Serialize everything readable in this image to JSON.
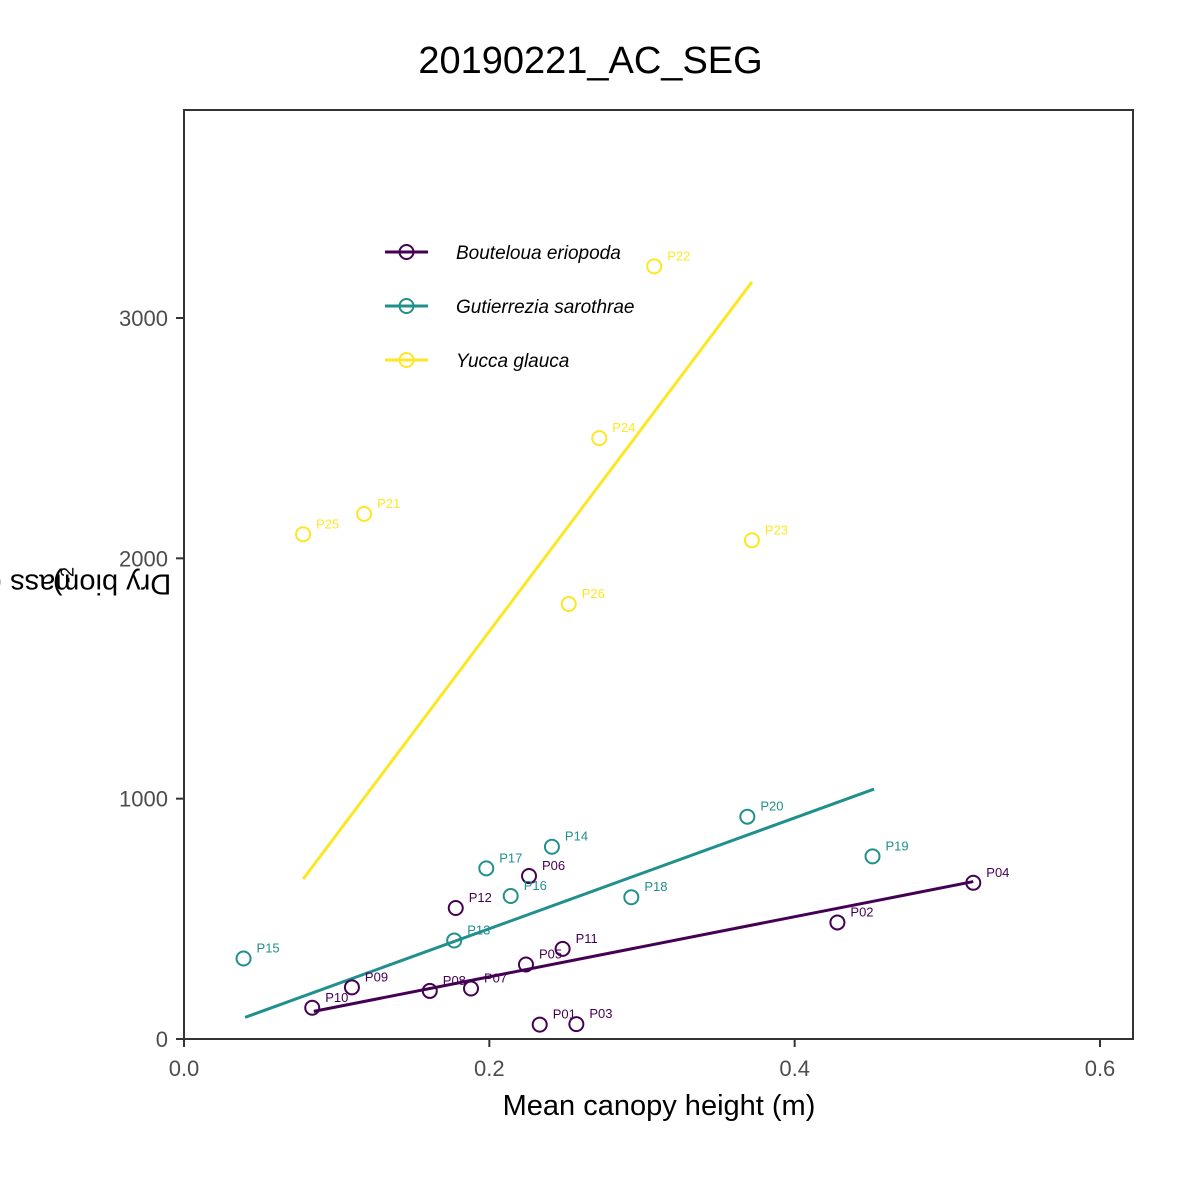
{
  "chart_data": {
    "type": "scatter",
    "title": "20190221_AC_SEG",
    "xlabel": "Mean canopy height (m)",
    "ylabel": "Dry biomass (g m",
    "ylabel_sup": "-2",
    "ylabel_close": ")",
    "xlim": [
      0.0,
      0.6
    ],
    "ylim": [
      0,
      3000
    ],
    "xticks": [
      0.0,
      0.2,
      0.4,
      0.6
    ],
    "xtick_labels": [
      "0.0",
      "0.2",
      "0.4",
      "0.6"
    ],
    "yticks": [
      0,
      1000,
      2000,
      3000
    ],
    "ytick_labels": [
      "0",
      "1000",
      "2000",
      "3000"
    ],
    "grid": false,
    "legend_position": "top-left",
    "series": [
      {
        "name": "Bouteloua eriopoda",
        "color": "#440154",
        "fit": [
          [
            0.085,
            115
          ],
          [
            0.517,
            655
          ]
        ],
        "points": [
          {
            "label": "P01",
            "x": 0.233,
            "y": 60
          },
          {
            "label": "P02",
            "x": 0.428,
            "y": 485
          },
          {
            "label": "P03",
            "x": 0.257,
            "y": 62
          },
          {
            "label": "P04",
            "x": 0.517,
            "y": 650
          },
          {
            "label": "P05",
            "x": 0.224,
            "y": 310
          },
          {
            "label": "P06",
            "x": 0.226,
            "y": 678
          },
          {
            "label": "P07",
            "x": 0.188,
            "y": 210
          },
          {
            "label": "P08",
            "x": 0.161,
            "y": 200
          },
          {
            "label": "P09",
            "x": 0.11,
            "y": 215
          },
          {
            "label": "P10",
            "x": 0.084,
            "y": 130
          },
          {
            "label": "P11",
            "x": 0.248,
            "y": 375
          },
          {
            "label": "P12",
            "x": 0.178,
            "y": 545
          }
        ]
      },
      {
        "name": "Gutierrezia sarothrae",
        "color": "#21908C",
        "fit": [
          [
            0.04,
            90
          ],
          [
            0.452,
            1040
          ]
        ],
        "points": [
          {
            "label": "P13",
            "x": 0.177,
            "y": 410
          },
          {
            "label": "P14",
            "x": 0.241,
            "y": 800
          },
          {
            "label": "P15",
            "x": 0.039,
            "y": 335
          },
          {
            "label": "P16",
            "x": 0.214,
            "y": 595
          },
          {
            "label": "P17",
            "x": 0.198,
            "y": 710
          },
          {
            "label": "P18",
            "x": 0.293,
            "y": 590
          },
          {
            "label": "P19",
            "x": 0.451,
            "y": 760
          },
          {
            "label": "P20",
            "x": 0.369,
            "y": 925
          }
        ]
      },
      {
        "name": "Yucca glauca",
        "color": "#FDE725",
        "fit": [
          [
            0.078,
            665
          ],
          [
            0.372,
            3150
          ]
        ],
        "points": [
          {
            "label": "P21",
            "x": 0.118,
            "y": 2185
          },
          {
            "label": "P22",
            "x": 0.308,
            "y": 3215
          },
          {
            "label": "P23",
            "x": 0.372,
            "y": 2075
          },
          {
            "label": "P24",
            "x": 0.272,
            "y": 2500
          },
          {
            "label": "P25",
            "x": 0.078,
            "y": 2100
          },
          {
            "label": "P26",
            "x": 0.252,
            "y": 1810
          }
        ]
      }
    ]
  }
}
